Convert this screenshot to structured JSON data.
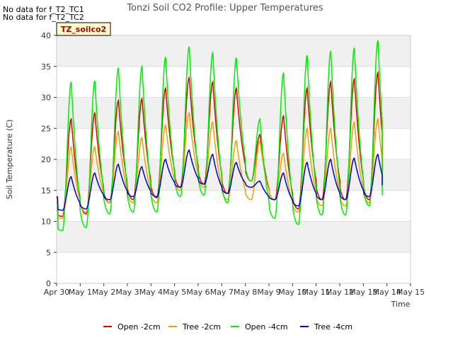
{
  "notes": [
    "No data for f_T2_TC1",
    "No data for f_T2_TC2"
  ],
  "badge": "TZ_soilco2",
  "chart_data": {
    "type": "line",
    "title": "Tonzi Soil CO2 Profile: Upper Temperatures",
    "xlabel": "Time",
    "ylabel": "Soil Temperature (C)",
    "ylim": [
      0,
      40
    ],
    "yticks": [
      0,
      5,
      10,
      15,
      20,
      25,
      30,
      35,
      40
    ],
    "xlim": [
      0,
      15
    ],
    "xticks": [
      0,
      1,
      2,
      3,
      4,
      5,
      6,
      7,
      8,
      9,
      10,
      11,
      12,
      13,
      14,
      15
    ],
    "xtick_labels": [
      "Apr 30",
      "May 1",
      "May 2",
      "May 3",
      "May 4",
      "May 5",
      "May 6",
      "May 7",
      "May 8",
      "May 9",
      "May 10",
      "May 11",
      "May 12",
      "May 13",
      "May 14",
      "May 15"
    ],
    "grid": "horizontal bands",
    "legend_position": "bottom",
    "series_x_unit": "days since Apr 30",
    "series": [
      {
        "name": "Open -2cm",
        "color": "#dd0000",
        "daily": [
          {
            "min": 10.8,
            "max": 26.5
          },
          {
            "min": 11.2,
            "max": 27.5
          },
          {
            "min": 13.0,
            "max": 29.5
          },
          {
            "min": 13.5,
            "max": 29.8
          },
          {
            "min": 13.8,
            "max": 31.5
          },
          {
            "min": 15.5,
            "max": 33.2
          },
          {
            "min": 16.0,
            "max": 32.5
          },
          {
            "min": 14.5,
            "max": 31.5
          },
          {
            "min": 16.5,
            "max": 24.0
          },
          {
            "min": 13.5,
            "max": 27.0
          },
          {
            "min": 12.0,
            "max": 31.5
          },
          {
            "min": 13.5,
            "max": 32.5
          },
          {
            "min": 13.5,
            "max": 33.0
          },
          {
            "min": 13.5,
            "max": 34.0
          }
        ],
        "start": 14.0,
        "end": 17.5
      },
      {
        "name": "Tree -2cm",
        "color": "#f0a000",
        "daily": [
          {
            "min": 10.5,
            "max": 22.0
          },
          {
            "min": 11.5,
            "max": 22.0
          },
          {
            "min": 13.0,
            "max": 24.5
          },
          {
            "min": 13.0,
            "max": 23.5
          },
          {
            "min": 13.0,
            "max": 25.5
          },
          {
            "min": 15.0,
            "max": 27.5
          },
          {
            "min": 15.5,
            "max": 26.0
          },
          {
            "min": 13.5,
            "max": 23.0
          },
          {
            "min": 13.5,
            "max": 23.0
          },
          {
            "min": 13.5,
            "max": 21.0
          },
          {
            "min": 11.5,
            "max": 25.0
          },
          {
            "min": 12.5,
            "max": 25.0
          },
          {
            "min": 12.5,
            "max": 26.0
          },
          {
            "min": 13.0,
            "max": 26.5
          }
        ],
        "start": 12.0,
        "end": 16.5
      },
      {
        "name": "Open -4cm",
        "color": "#00ee00",
        "daily": [
          {
            "min": 8.5,
            "max": 32.5
          },
          {
            "min": 9.0,
            "max": 32.7
          },
          {
            "min": 11.2,
            "max": 34.8
          },
          {
            "min": 11.5,
            "max": 35.0
          },
          {
            "min": 11.5,
            "max": 36.5
          },
          {
            "min": 14.0,
            "max": 38.2
          },
          {
            "min": 14.2,
            "max": 37.2
          },
          {
            "min": 13.0,
            "max": 36.4
          },
          {
            "min": 16.5,
            "max": 26.5
          },
          {
            "min": 10.5,
            "max": 34.0
          },
          {
            "min": 9.5,
            "max": 36.8
          },
          {
            "min": 11.0,
            "max": 37.5
          },
          {
            "min": 11.0,
            "max": 38.0
          },
          {
            "min": 12.5,
            "max": 39.2
          }
        ],
        "start": 13.0,
        "end": 14.2
      },
      {
        "name": "Tree -4cm",
        "color": "#0000cc",
        "daily": [
          {
            "min": 11.8,
            "max": 17.2
          },
          {
            "min": 12.0,
            "max": 17.8
          },
          {
            "min": 13.5,
            "max": 19.2
          },
          {
            "min": 14.0,
            "max": 18.8
          },
          {
            "min": 14.0,
            "max": 20.0
          },
          {
            "min": 15.5,
            "max": 21.5
          },
          {
            "min": 16.0,
            "max": 20.8
          },
          {
            "min": 14.5,
            "max": 19.5
          },
          {
            "min": 15.5,
            "max": 16.5
          },
          {
            "min": 13.5,
            "max": 17.8
          },
          {
            "min": 12.5,
            "max": 19.5
          },
          {
            "min": 13.5,
            "max": 20.0
          },
          {
            "min": 13.5,
            "max": 20.2
          },
          {
            "min": 14.0,
            "max": 20.8
          }
        ],
        "start": 13.8,
        "end": 15.8
      }
    ]
  }
}
